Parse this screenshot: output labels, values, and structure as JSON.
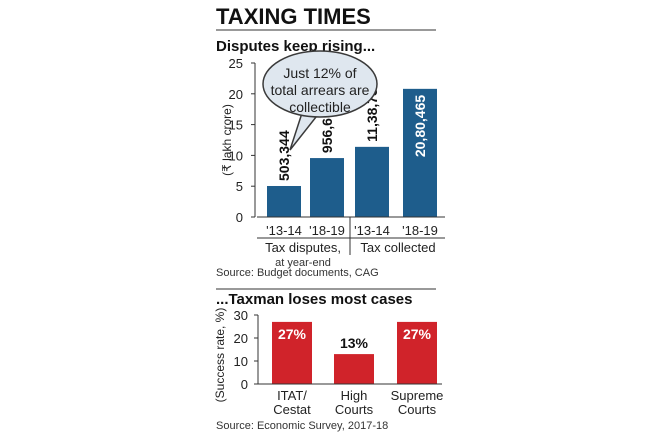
{
  "header": {
    "title": "TAXING TIMES"
  },
  "chart_data": [
    {
      "type": "bar",
      "title": "Disputes keep rising...",
      "ylabel": "(₹ lakh crore)",
      "ylim": [
        0,
        25
      ],
      "yticks": [
        0,
        5,
        10,
        15,
        20,
        25
      ],
      "categories": [
        "'13-14",
        "'18-19",
        "'13-14",
        "'18-19"
      ],
      "values": [
        5.03344,
        9.56603,
        11.38733,
        20.80465
      ],
      "value_labels": [
        "503,344",
        "956,603",
        "11,38,733",
        "20,80,465"
      ],
      "groups": [
        {
          "label": "Tax disputes,",
          "sublabel": "at year-end",
          "categories": [
            0,
            1
          ]
        },
        {
          "label": "Tax collected",
          "categories": [
            2,
            3
          ]
        }
      ],
      "callout": [
        "Just 12% of",
        "total arrears are",
        "collectible"
      ],
      "source": "Source: Budget documents, CAG",
      "bar_color": "#1e5d8c",
      "grid": false
    },
    {
      "type": "bar",
      "title": "...Taxman loses most cases",
      "ylabel": "(Success rate, %)",
      "ylim": [
        0,
        30
      ],
      "yticks": [
        0,
        10,
        20,
        30
      ],
      "categories": [
        [
          "ITAT/",
          "Cestat"
        ],
        [
          "High",
          "Courts"
        ],
        [
          "Supreme",
          "Courts"
        ]
      ],
      "values": [
        27,
        13,
        27
      ],
      "value_labels": [
        "27%",
        "13%",
        "27%"
      ],
      "source": "Source: Economic Survey, 2017-18",
      "bar_color": "#d0232a",
      "grid": false
    }
  ]
}
